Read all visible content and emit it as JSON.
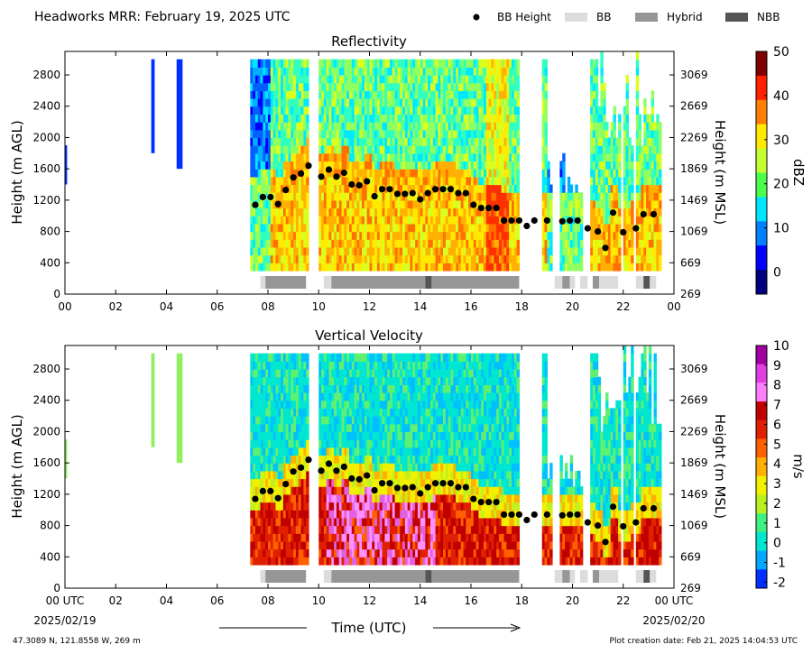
{
  "title": "Headworks MRR:  February 19, 2025 UTC",
  "legend": [
    {
      "label": "BB Height",
      "kind": "dot",
      "color": "#000000"
    },
    {
      "label": "BB",
      "kind": "box",
      "color": "#dcdcdc"
    },
    {
      "label": "Hybrid",
      "kind": "box",
      "color": "#969696"
    },
    {
      "label": "NBB",
      "kind": "box",
      "color": "#555555"
    }
  ],
  "xticks": [
    "00",
    "02",
    "04",
    "06",
    "08",
    "10",
    "12",
    "14",
    "16",
    "18",
    "20",
    "22",
    "00"
  ],
  "xticks_bottom": [
    "00 UTC",
    "02",
    "04",
    "06",
    "08",
    "10",
    "12",
    "14",
    "16",
    "18",
    "20",
    "22",
    "00 UTC"
  ],
  "date_start": "2025/02/19",
  "date_end": "2025/02/20",
  "xlabel": "Time (UTC)",
  "footer_left": "47.3089 N, 121.8558 W, 269 m",
  "footer_right": "Plot creation date: Feb 21, 2025 14:04:53 UTC",
  "chart_data": [
    {
      "type": "heatmap",
      "title": "Reflectivity",
      "ylabel": "Height (m AGL)",
      "ylabel_right": "Height (m MSL)",
      "yticks": [
        "0",
        "400",
        "800",
        "1200",
        "1600",
        "2000",
        "2400",
        "2800"
      ],
      "yticks_right": [
        "269",
        "669",
        "1069",
        "1469",
        "1869",
        "2269",
        "2669",
        "3069"
      ],
      "colorbar": {
        "label": "dBZ",
        "ticks": [
          "0",
          "10",
          "20",
          "30",
          "40",
          "50"
        ],
        "range": [
          -5,
          50
        ],
        "colors": [
          "#00007f",
          "#0000ff",
          "#0080ff",
          "#00e5ff",
          "#4cff4c",
          "#c6ff30",
          "#ffea00",
          "#ff8000",
          "#ff2000",
          "#7f0000"
        ]
      }
    },
    {
      "type": "heatmap",
      "title": "Vertical Velocity",
      "ylabel": "Height (m AGL)",
      "ylabel_right": "Height (m MSL)",
      "yticks": [
        "0",
        "400",
        "800",
        "1200",
        "1600",
        "2000",
        "2400",
        "2800"
      ],
      "yticks_right": [
        "269",
        "669",
        "1069",
        "1469",
        "1869",
        "2269",
        "2669",
        "3069"
      ],
      "colorbar": {
        "label": "m/s",
        "ticks": [
          "-2",
          "-1",
          "0",
          "1",
          "2",
          "3",
          "4",
          "5",
          "6",
          "7",
          "8",
          "9",
          "10"
        ],
        "range": [
          -2.3,
          10
        ],
        "colors": [
          "#0030ff",
          "#00a8ff",
          "#00e6d0",
          "#40f080",
          "#b8f020",
          "#f0f000",
          "#ffb000",
          "#ff6000",
          "#e02000",
          "#c00000",
          "#ff80ff",
          "#e040e0",
          "#a000a0"
        ]
      }
    }
  ],
  "bb_height": {
    "x_hours": [
      7.5,
      7.8,
      8.1,
      8.4,
      8.7,
      9.0,
      9.3,
      9.6,
      10.1,
      10.4,
      10.7,
      11.0,
      11.3,
      11.6,
      11.9,
      12.2,
      12.5,
      12.8,
      13.1,
      13.4,
      13.7,
      14.0,
      14.3,
      14.6,
      14.9,
      15.2,
      15.5,
      15.8,
      16.1,
      16.4,
      16.7,
      17.0,
      17.3,
      17.6,
      17.9,
      18.2,
      18.5,
      19.0,
      19.6,
      19.9,
      20.2,
      20.6,
      21.0,
      21.3,
      21.6,
      22.0,
      22.5,
      22.8,
      23.2
    ],
    "y_m": [
      1140,
      1240,
      1240,
      1150,
      1330,
      1490,
      1540,
      1640,
      1500,
      1590,
      1500,
      1550,
      1400,
      1390,
      1440,
      1250,
      1340,
      1340,
      1280,
      1280,
      1290,
      1210,
      1290,
      1340,
      1340,
      1340,
      1290,
      1290,
      1140,
      1100,
      1100,
      1100,
      940,
      940,
      940,
      870,
      940,
      940,
      930,
      940,
      940,
      840,
      800,
      590,
      1040,
      790,
      840,
      1020,
      1020
    ]
  },
  "bb_type": [
    {
      "start": 7.7,
      "end": 7.9,
      "type": "BB"
    },
    {
      "start": 7.9,
      "end": 9.5,
      "type": "Hybrid"
    },
    {
      "start": 10.2,
      "end": 10.5,
      "type": "BB"
    },
    {
      "start": 10.5,
      "end": 14.2,
      "type": "Hybrid"
    },
    {
      "start": 14.2,
      "end": 14.45,
      "type": "NBB"
    },
    {
      "start": 14.45,
      "end": 17.9,
      "type": "Hybrid"
    },
    {
      "start": 19.3,
      "end": 19.6,
      "type": "BB"
    },
    {
      "start": 19.6,
      "end": 19.9,
      "type": "Hybrid"
    },
    {
      "start": 19.9,
      "end": 20.1,
      "type": "BB"
    },
    {
      "start": 20.3,
      "end": 20.6,
      "type": "BB"
    },
    {
      "start": 20.8,
      "end": 21.05,
      "type": "Hybrid"
    },
    {
      "start": 21.05,
      "end": 21.8,
      "type": "BB"
    },
    {
      "start": 22.5,
      "end": 22.8,
      "type": "BB"
    },
    {
      "start": 22.8,
      "end": 23.05,
      "type": "NBB"
    },
    {
      "start": 23.05,
      "end": 23.3,
      "type": "BB"
    }
  ]
}
